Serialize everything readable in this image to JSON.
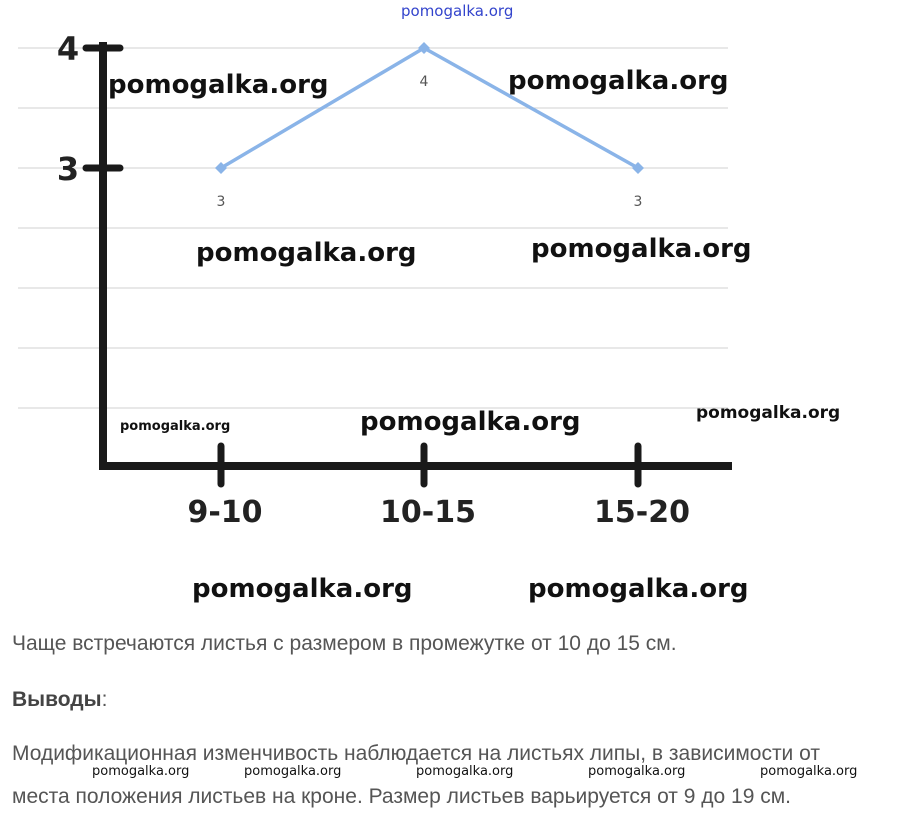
{
  "chart_data": {
    "type": "line",
    "categories": [
      "9-10",
      "10-15",
      "15-20"
    ],
    "values": [
      3,
      4,
      3
    ],
    "data_labels": [
      "3",
      "4",
      "3"
    ],
    "y_ticks": [
      "3",
      "4"
    ],
    "ylim": [
      0,
      4
    ],
    "grid": true,
    "line_color": "#8ab4e8"
  },
  "watermark": {
    "top": "pomogalka.org",
    "items": [
      "pomogalka.org",
      "pomogalka.org",
      "pomogalka.org",
      "pomogalka.org",
      "pomogalka.org",
      "pomogalka.org",
      "pomogalka.org",
      "pomogalka.org",
      "pomogalka.org",
      "pomogalka.org"
    ],
    "bottom": [
      "pomogalka.org",
      "pomogalka.org",
      "pomogalka.org",
      "pomogalka.org",
      "pomogalka.org"
    ]
  },
  "text": {
    "line1": "Чаще встречаются листья с размером в промежутке от 10 до 15 см.",
    "conclusions_label": "Выводы",
    "conclusions_colon": ":",
    "line2": "Модификационная изменчивость наблюдается на листьях липы, в зависимости от",
    "line3": "места положения листьев на кроне. Размер листьев варьируется от 9 до 19 см."
  }
}
